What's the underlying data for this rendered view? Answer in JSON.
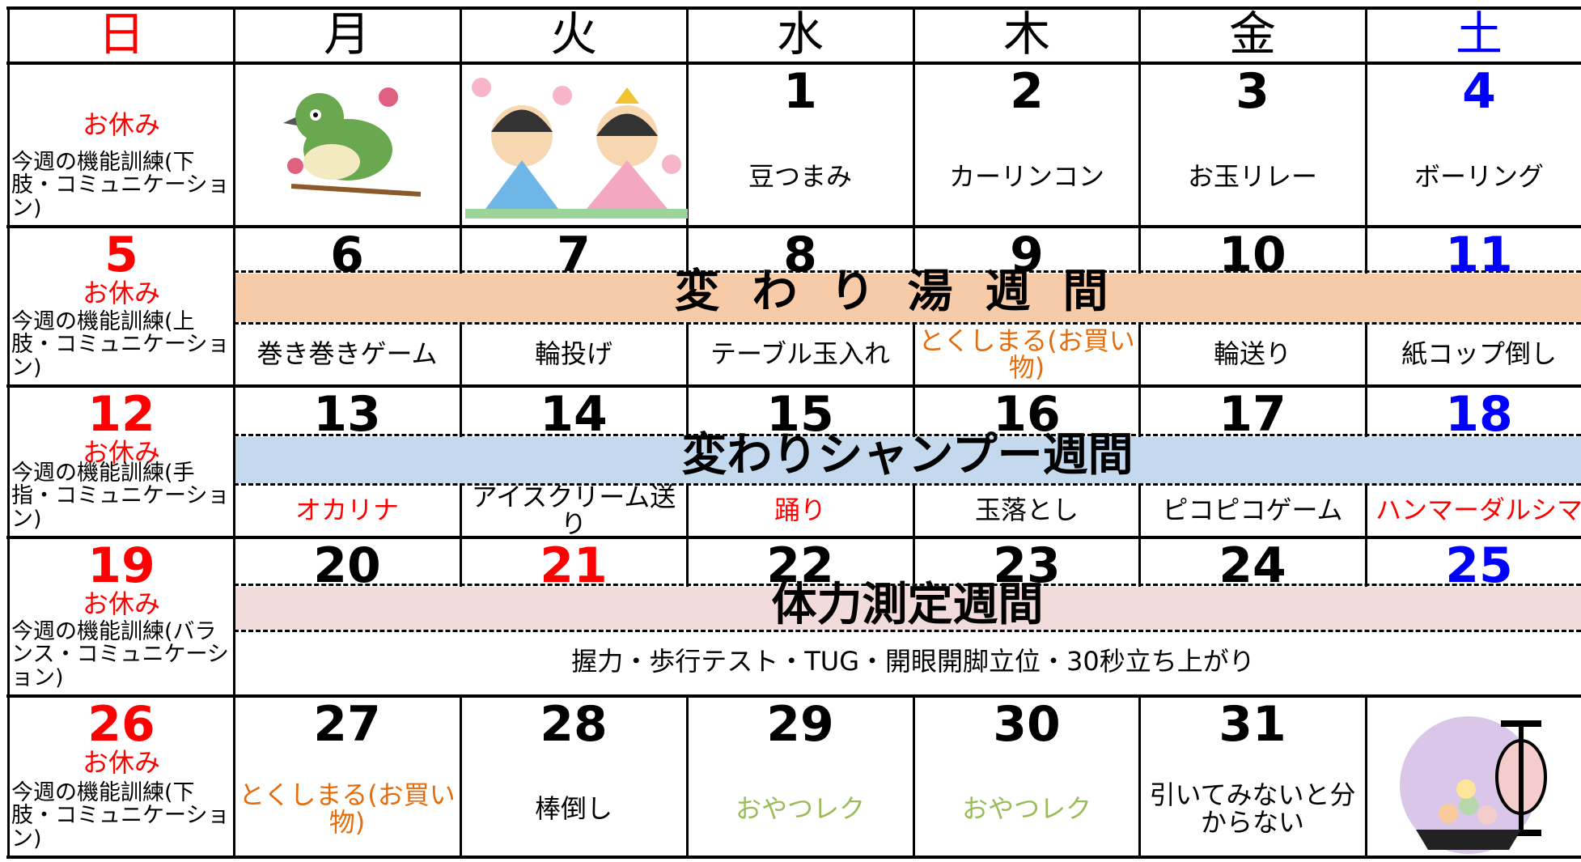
{
  "weekdays": [
    "日",
    "月",
    "火",
    "水",
    "木",
    "金",
    "土"
  ],
  "weeks": [
    {
      "sunday": {
        "rest": "お休み",
        "training": "今週の機能訓練(下肢・コミュニケーション)"
      },
      "days": [
        {
          "date": "1",
          "activity": "豆つまみ"
        },
        {
          "date": "2",
          "activity": "カーリンコン"
        },
        {
          "date": "3",
          "activity": "お玉リレー"
        },
        {
          "date": "4",
          "activity": "ボーリング"
        }
      ]
    },
    {
      "sunday": {
        "date": "5",
        "rest": "お休み",
        "training": "今週の機能訓練(上肢・コミュニケーション)"
      },
      "banner": "変わり湯週間",
      "banner_color": "#f8cba8",
      "days": [
        {
          "date": "6",
          "activity": "巻き巻きゲーム"
        },
        {
          "date": "7",
          "activity": "輪投げ"
        },
        {
          "date": "8",
          "activity": "テーブル玉入れ"
        },
        {
          "date": "9",
          "activity": "とくしまる(お買い物)",
          "color": "#e46c0a"
        },
        {
          "date": "10",
          "activity": "輪送り"
        },
        {
          "date": "11",
          "activity": "紙コップ倒し"
        }
      ]
    },
    {
      "sunday": {
        "date": "12",
        "rest": "お休み",
        "training": "今週の機能訓練(手指・コミュニケーション)"
      },
      "banner": "変わりシャンプー週間",
      "banner_color": "#c5d9ee",
      "days": [
        {
          "date": "13",
          "activity": "オカリナ",
          "color": "#ff0000"
        },
        {
          "date": "14",
          "activity": "アイスクリーム送り"
        },
        {
          "date": "15",
          "activity": "踊り",
          "color": "#ff0000"
        },
        {
          "date": "16",
          "activity": "玉落とし"
        },
        {
          "date": "17",
          "activity": "ピコピコゲーム"
        },
        {
          "date": "18",
          "activity": "ハンマーダルシマ",
          "color": "#ff0000"
        }
      ]
    },
    {
      "sunday": {
        "date": "19",
        "rest": "お休み",
        "training": "今週の機能訓練(バランス・コミュニケーション)"
      },
      "banner": "体力測定週間",
      "banner_color": "#f2dcdb",
      "note": "握力・歩行テスト・TUG・開眼開脚立位・30秒立ち上がり",
      "days": [
        {
          "date": "20"
        },
        {
          "date": "21",
          "date_color": "#ff0000"
        },
        {
          "date": "22"
        },
        {
          "date": "23"
        },
        {
          "date": "24"
        },
        {
          "date": "25"
        }
      ]
    },
    {
      "sunday": {
        "date": "26",
        "rest": "お休み",
        "training": "今週の機能訓練(下肢・コミュニケーション)"
      },
      "days": [
        {
          "date": "27",
          "activity": "とくしまる(お買い物)",
          "color": "#e46c0a"
        },
        {
          "date": "28",
          "activity": "棒倒し"
        },
        {
          "date": "29",
          "activity": "おやつレク",
          "color": "#9bbb59"
        },
        {
          "date": "30",
          "activity": "おやつレク",
          "color": "#9bbb59"
        },
        {
          "date": "31",
          "activity": "引いてみないと分からない"
        }
      ]
    }
  ]
}
